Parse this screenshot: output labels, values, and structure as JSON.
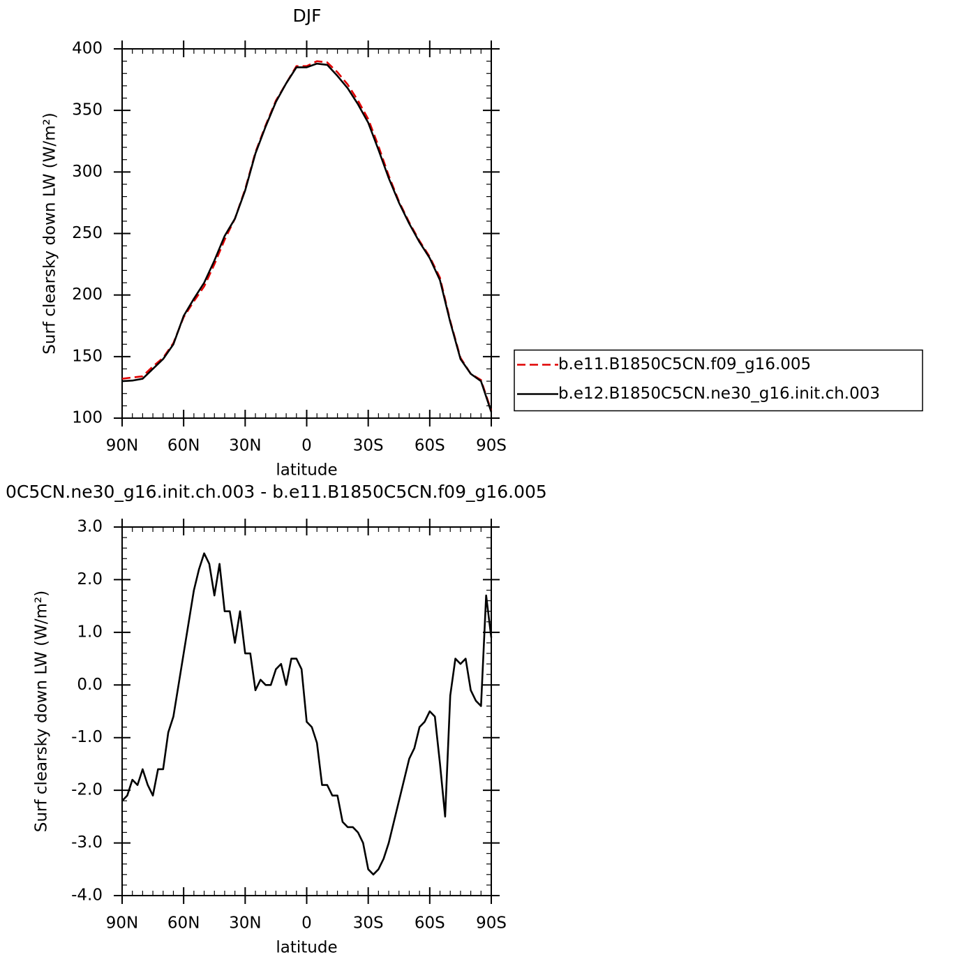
{
  "chart_data": [
    {
      "type": "line",
      "title": "DJF",
      "x_label": "latitude",
      "y_label": "Surf clearsky down LW (W/m²)",
      "x": [
        90,
        85,
        80,
        75,
        70,
        65,
        60,
        55,
        50,
        45,
        40,
        35,
        30,
        25,
        20,
        15,
        10,
        5,
        0,
        -5,
        -10,
        -15,
        -20,
        -25,
        -30,
        -35,
        -40,
        -45,
        -50,
        -55,
        -60,
        -65,
        -70,
        -75,
        -80,
        -85,
        -90
      ],
      "series": [
        {
          "name": "b.e11.B1850C5CN.f09_g16.005",
          "color": "#e00000",
          "line_style": "dashed",
          "values": [
            132,
            133,
            134,
            142,
            149,
            161,
            182,
            195,
            207,
            225,
            245,
            262,
            286,
            316,
            338,
            358,
            372,
            386,
            386,
            390,
            389,
            381,
            371,
            358,
            343,
            321,
            297,
            276,
            259,
            244,
            231,
            214,
            179,
            149,
            136,
            131,
            106
          ]
        },
        {
          "name": "b.e12.B1850C5CN.ne30_g16.init.ch.003",
          "color": "#000000",
          "line_style": "solid",
          "values": [
            130,
            130.5,
            132,
            140,
            148,
            160,
            183,
            197,
            210,
            228,
            248,
            262,
            285,
            315,
            337,
            357,
            372,
            385,
            385,
            388,
            387,
            378,
            368,
            355,
            340,
            318,
            295,
            275,
            258,
            243,
            230,
            212,
            178,
            148,
            136,
            130,
            105
          ]
        }
      ],
      "xlim": [
        90,
        -90
      ],
      "xticks": [
        {
          "value": 90,
          "label": "90N"
        },
        {
          "value": 60,
          "label": "60N"
        },
        {
          "value": 30,
          "label": "30N"
        },
        0,
        {
          "value": -30,
          "label": "30S"
        },
        {
          "value": -60,
          "label": "60S"
        },
        {
          "value": -90,
          "label": "90S"
        }
      ],
      "ylim": [
        100,
        400
      ],
      "yticks": [
        100,
        150,
        200,
        250,
        300,
        350,
        400
      ],
      "legend": "right"
    },
    {
      "type": "line",
      "title": "0C5CN.ne30_g16.init.ch.003 - b.e11.B1850C5CN.f09_g16.005",
      "x_label": "latitude",
      "y_label": "Surf clearsky down LW (W/m²)",
      "x": [
        90,
        87.5,
        85,
        82.5,
        80,
        77.5,
        75,
        72.5,
        70,
        67.5,
        65,
        62.5,
        60,
        57.5,
        55,
        52.5,
        50,
        47.5,
        45,
        42.5,
        40,
        37.5,
        35,
        32.5,
        30,
        27.5,
        25,
        22.5,
        20,
        17.5,
        15,
        12.5,
        10,
        7.5,
        5,
        2.5,
        0,
        -2.5,
        -5,
        -7.5,
        -10,
        -12.5,
        -15,
        -17.5,
        -20,
        -22.5,
        -25,
        -27.5,
        -30,
        -32.5,
        -35,
        -37.5,
        -40,
        -42.5,
        -45,
        -47.5,
        -50,
        -52.5,
        -55,
        -57.5,
        -60,
        -62.5,
        -65,
        -67.5,
        -70,
        -72.5,
        -75,
        -77.5,
        -80,
        -82.5,
        -85,
        -87.5,
        -90
      ],
      "series": [
        {
          "color": "#000000",
          "line_style": "solid",
          "values": [
            -2.2,
            -2.1,
            -1.8,
            -1.9,
            -1.6,
            -1.9,
            -2.1,
            -1.6,
            -1.6,
            -0.9,
            -0.6,
            0.0,
            0.6,
            1.2,
            1.8,
            2.2,
            2.5,
            2.3,
            1.7,
            2.3,
            1.4,
            1.4,
            0.8,
            1.4,
            0.6,
            0.6,
            -0.1,
            0.1,
            0.0,
            0.0,
            0.3,
            0.4,
            0.0,
            0.5,
            0.5,
            0.3,
            -0.7,
            -0.8,
            -1.1,
            -1.9,
            -1.9,
            -2.1,
            -2.1,
            -2.6,
            -2.7,
            -2.7,
            -2.8,
            -3.0,
            -3.5,
            -3.6,
            -3.5,
            -3.3,
            -3.0,
            -2.6,
            -2.2,
            -1.8,
            -1.4,
            -1.2,
            -0.8,
            -0.7,
            -0.5,
            -0.6,
            -1.5,
            -2.5,
            -0.2,
            0.5,
            0.4,
            0.5,
            -0.1,
            -0.3,
            -0.4,
            1.7,
            0.9
          ]
        }
      ],
      "xlim": [
        90,
        -90
      ],
      "xticks": [
        {
          "value": 90,
          "label": "90N"
        },
        {
          "value": 60,
          "label": "60N"
        },
        {
          "value": 30,
          "label": "30N"
        },
        0,
        {
          "value": -30,
          "label": "30S"
        },
        {
          "value": -60,
          "label": "60S"
        },
        {
          "value": -90,
          "label": "90S"
        }
      ],
      "ylim": [
        -4,
        3
      ],
      "yticks": [
        {
          "value": -4,
          "label": "-4.0"
        },
        {
          "value": -3,
          "label": "-3.0"
        },
        {
          "value": -2,
          "label": "-2.0"
        },
        {
          "value": -1,
          "label": "-1.0"
        },
        {
          "value": 0,
          "label": "0.0"
        },
        {
          "value": 1,
          "label": "1.0"
        },
        {
          "value": 2,
          "label": "2.0"
        },
        {
          "value": 3,
          "label": "3.0"
        }
      ]
    }
  ]
}
